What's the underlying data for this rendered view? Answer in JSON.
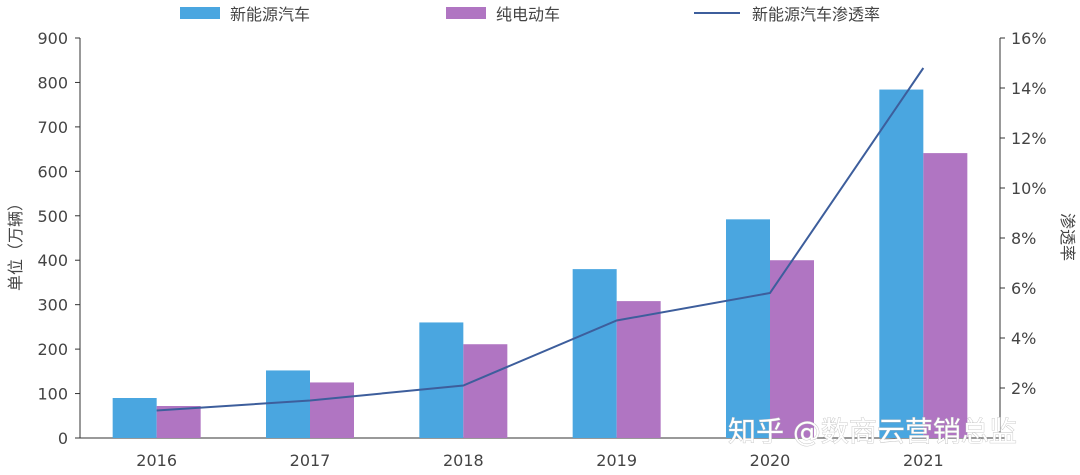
{
  "chart_data": {
    "type": "bar",
    "categories": [
      "2016",
      "2017",
      "2018",
      "2019",
      "2020",
      "2021"
    ],
    "series": [
      {
        "name": "新能源汽车",
        "type": "bar",
        "axis": "left",
        "color": "#4aa6e0",
        "values": [
          90,
          152,
          260,
          380,
          492,
          784
        ]
      },
      {
        "name": "纯电动车",
        "type": "bar",
        "axis": "left",
        "color": "#b075c2",
        "values": [
          72,
          125,
          211,
          308,
          400,
          641
        ]
      },
      {
        "name": "新能源汽车渗透率",
        "type": "line",
        "axis": "right",
        "color": "#3d5e9c",
        "values": [
          1.1,
          1.5,
          2.1,
          4.7,
          5.8,
          14.8
        ]
      }
    ],
    "ylabel": "单位（万辆）",
    "y2label": "渗透率",
    "ylim": [
      0,
      900
    ],
    "y2lim": [
      0,
      16
    ],
    "yticks": [
      "0",
      "100",
      "200",
      "300",
      "400",
      "500",
      "600",
      "700",
      "800",
      "900"
    ],
    "y2ticks": [
      "",
      "2%",
      "4%",
      "6%",
      "8%",
      "10%",
      "12%",
      "14%",
      "16%"
    ],
    "legend": "top",
    "grid": false
  },
  "watermark": "知乎 @数商云营销总监"
}
